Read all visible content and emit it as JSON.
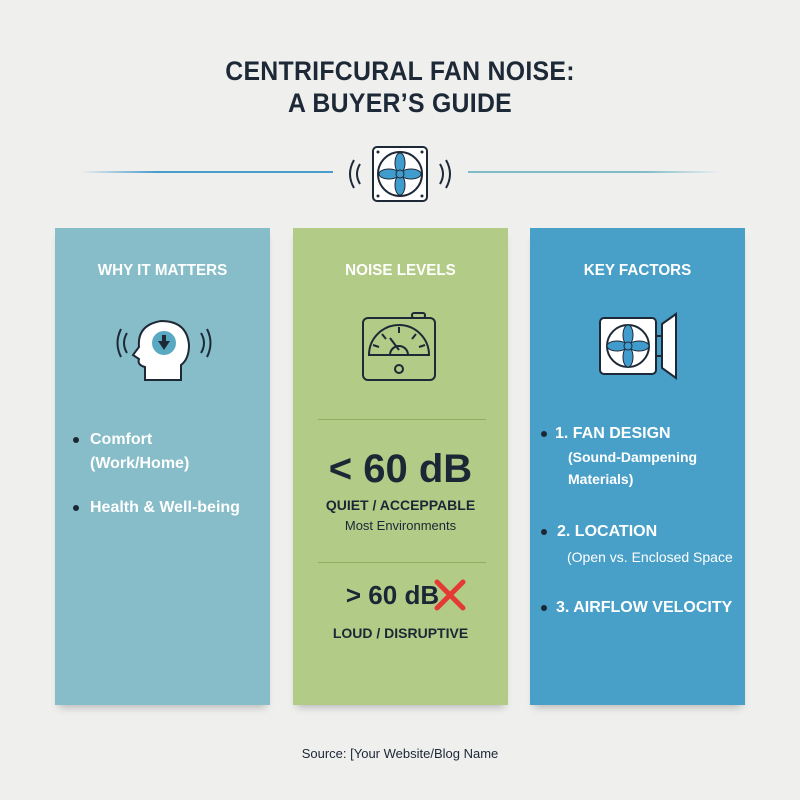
{
  "title": {
    "line1": "CENTRIFCURAL FAN NOISE:",
    "line2": "A BUYER’S GUIDE"
  },
  "colors": {
    "panel_left": "#86bdc9",
    "panel_middle": "#b2cb86",
    "panel_right": "#48a0c8",
    "rule_left": "#4a9ccc",
    "rule_right": "#7fbcc8",
    "cross": "#e53935"
  },
  "panels": {
    "left": {
      "heading": "WHY IT MATTERS",
      "icon": "head-sound-icon",
      "items": [
        "Comfort (Work/Home)",
        "Health & Well-being"
      ]
    },
    "middle": {
      "heading": "NOISE LEVELS",
      "icon": "decibel-meter-icon",
      "quiet": {
        "value": "< 60 dB",
        "label": "QUIET / ACCEPPABLE",
        "sub": "Most Environments"
      },
      "loud": {
        "value": "> 60 dB",
        "label": "LOUD / DISRUPTIVE",
        "icon": "red-x-icon"
      }
    },
    "right": {
      "heading": "KEY FACTORS",
      "icon": "fan-enclosure-icon",
      "items": [
        {
          "title": "1. FAN DESIGN",
          "sub": "(Sound-Dampening Materials)"
        },
        {
          "title": "2. LOCATION",
          "sub": "(Open vs. Enclosed Space"
        },
        {
          "title": "3. AIRFLOW VELOCITY",
          "sub": ""
        }
      ]
    }
  },
  "footer": {
    "source": "Source: [Your Website/Blog Name"
  }
}
